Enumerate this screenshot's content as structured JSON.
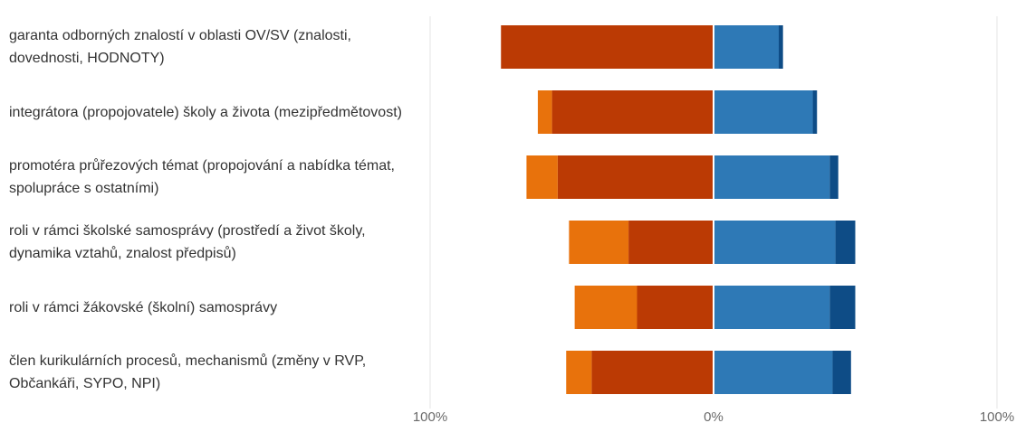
{
  "chart_data": {
    "type": "bar",
    "orientation": "horizontal",
    "stacking": "diverging",
    "categories": [
      "garanta odborných znalostí v oblasti OV/SV (znalosti, dovednosti, HODNOTY)",
      "integrátora (propojovatele) školy a života (mezipředmětovost)",
      "promotéra průřezových témat (propojování a nabídka témat, spolupráce s ostatními)",
      "roli v rámci školské samosprávy (prostředí a život školy, dynamika vztahů, znalost předpisů)",
      "roli v rámci žákovské (školní) samosprávy",
      "člen kurikulárních procesů, mechanismů (změny v RVP, Občankáři, SYPO, NPI)"
    ],
    "series": [
      {
        "color": "#bb3a04",
        "side": "negative",
        "values": [
          75,
          57,
          55,
          30,
          27,
          43
        ]
      },
      {
        "color": "#e8720c",
        "side": "negative",
        "values": [
          0,
          5,
          11,
          21,
          22,
          9
        ]
      },
      {
        "color": "#2e79b6",
        "side": "positive",
        "values": [
          23,
          35,
          41,
          43,
          41,
          42
        ]
      },
      {
        "color": "#0e4c86",
        "side": "positive",
        "values": [
          1.5,
          1.5,
          3,
          7,
          9,
          6.5
        ]
      }
    ],
    "xlim": [
      -100,
      100
    ],
    "xticks": [
      {
        "value": -100,
        "label": "100%"
      },
      {
        "value": 0,
        "label": "0%"
      },
      {
        "value": 100,
        "label": "100%"
      }
    ],
    "grid": true,
    "legend": "none"
  }
}
